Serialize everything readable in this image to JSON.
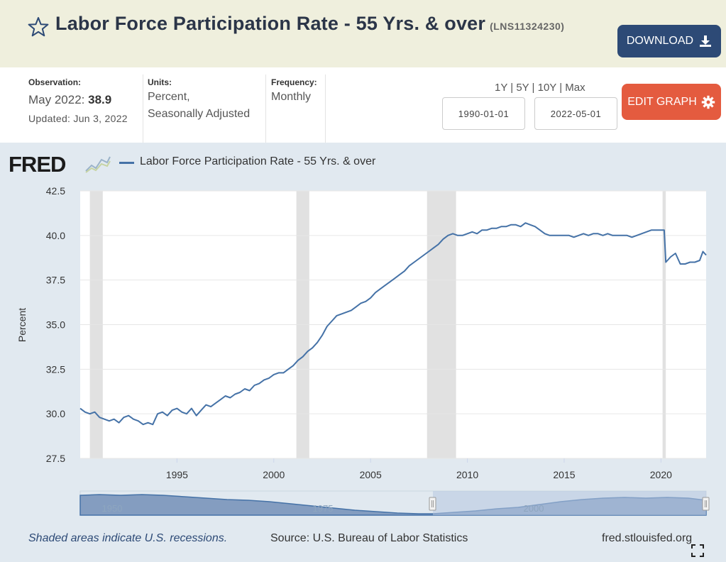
{
  "header": {
    "title": "Labor Force Participation Rate - 55 Yrs. & over",
    "series_id": "(LNS11324230)",
    "download_label": "DOWNLOAD",
    "star_icon": "star-outline-icon",
    "download_icon": "download-icon"
  },
  "info": {
    "observation_label": "Observation:",
    "observation_date": "May 2022:",
    "observation_value": "38.9",
    "updated": "Updated: Jun 3, 2022",
    "units_label": "Units:",
    "units_line1": "Percent,",
    "units_line2": "Seasonally Adjusted",
    "frequency_label": "Frequency:",
    "frequency_value": "Monthly",
    "range_links": [
      "1Y",
      "5Y",
      "10Y",
      "Max"
    ],
    "range_separator": " | ",
    "start_date": "1990-01-01",
    "end_date": "2022-05-01",
    "edit_label": "EDIT GRAPH",
    "edit_icon": "gear-icon"
  },
  "chart": {
    "logo_text": "FRED",
    "legend_label": "Labor Force Participation Rate - 55 Yrs. & over",
    "navigator_labels": [
      "1950",
      "1975",
      "2000"
    ],
    "footer_note": "Shaded areas indicate U.S. recessions.",
    "footer_source": "Source: U.S. Bureau of Labor Statistics",
    "footer_site": "fred.stlouisfed.org",
    "line_color": "#4572a7",
    "recession_color": "#e1e1e1"
  },
  "chart_data": {
    "type": "line",
    "ylabel": "Percent",
    "ylim": [
      27.5,
      42.5
    ],
    "yticks": [
      "27.5",
      "30.0",
      "32.5",
      "35.0",
      "37.5",
      "40.0",
      "42.5"
    ],
    "xlim": [
      "1990-01-01",
      "2022-05-01"
    ],
    "xticks": [
      "1995",
      "2000",
      "2005",
      "2010",
      "2015",
      "2020"
    ],
    "grid": true,
    "recessions": [
      [
        "1990-07-01",
        "1991-03-01"
      ],
      [
        "2001-03-01",
        "2001-11-01"
      ],
      [
        "2007-12-01",
        "2009-06-01"
      ],
      [
        "2020-02-01",
        "2020-04-01"
      ]
    ],
    "series": [
      {
        "name": "Labor Force Participation Rate - 55 Yrs. & over",
        "x": [
          "1990-01",
          "1990-04",
          "1990-07",
          "1990-10",
          "1991-01",
          "1991-04",
          "1991-07",
          "1991-10",
          "1992-01",
          "1992-04",
          "1992-07",
          "1992-10",
          "1993-01",
          "1993-04",
          "1993-07",
          "1993-10",
          "1994-01",
          "1994-04",
          "1994-07",
          "1994-10",
          "1995-01",
          "1995-04",
          "1995-07",
          "1995-10",
          "1996-01",
          "1996-04",
          "1996-07",
          "1996-10",
          "1997-01",
          "1997-04",
          "1997-07",
          "1997-10",
          "1998-01",
          "1998-04",
          "1998-07",
          "1998-10",
          "1999-01",
          "1999-04",
          "1999-07",
          "1999-10",
          "2000-01",
          "2000-04",
          "2000-07",
          "2000-10",
          "2001-01",
          "2001-04",
          "2001-07",
          "2001-10",
          "2002-01",
          "2002-04",
          "2002-07",
          "2002-10",
          "2003-01",
          "2003-04",
          "2003-07",
          "2003-10",
          "2004-01",
          "2004-04",
          "2004-07",
          "2004-10",
          "2005-01",
          "2005-04",
          "2005-07",
          "2005-10",
          "2006-01",
          "2006-04",
          "2006-07",
          "2006-10",
          "2007-01",
          "2007-04",
          "2007-07",
          "2007-10",
          "2008-01",
          "2008-04",
          "2008-07",
          "2008-10",
          "2009-01",
          "2009-04",
          "2009-07",
          "2009-10",
          "2010-01",
          "2010-04",
          "2010-07",
          "2010-10",
          "2011-01",
          "2011-04",
          "2011-07",
          "2011-10",
          "2012-01",
          "2012-04",
          "2012-07",
          "2012-10",
          "2013-01",
          "2013-04",
          "2013-07",
          "2013-10",
          "2014-01",
          "2014-04",
          "2014-07",
          "2014-10",
          "2015-01",
          "2015-04",
          "2015-07",
          "2015-10",
          "2016-01",
          "2016-04",
          "2016-07",
          "2016-10",
          "2017-01",
          "2017-04",
          "2017-07",
          "2017-10",
          "2018-01",
          "2018-04",
          "2018-07",
          "2018-10",
          "2019-01",
          "2019-04",
          "2019-07",
          "2019-10",
          "2020-01",
          "2020-03",
          "2020-04",
          "2020-07",
          "2020-10",
          "2021-01",
          "2021-04",
          "2021-07",
          "2021-10",
          "2022-01",
          "2022-03",
          "2022-05"
        ],
        "values": [
          30.3,
          30.1,
          30.0,
          30.1,
          29.8,
          29.7,
          29.6,
          29.7,
          29.5,
          29.8,
          29.9,
          29.7,
          29.6,
          29.4,
          29.5,
          29.4,
          30.0,
          30.1,
          29.9,
          30.2,
          30.3,
          30.1,
          30.0,
          30.3,
          29.9,
          30.2,
          30.5,
          30.4,
          30.6,
          30.8,
          31.0,
          30.9,
          31.1,
          31.2,
          31.4,
          31.3,
          31.6,
          31.7,
          31.9,
          32.0,
          32.2,
          32.3,
          32.3,
          32.5,
          32.7,
          33.0,
          33.2,
          33.5,
          33.7,
          34.0,
          34.4,
          34.9,
          35.2,
          35.5,
          35.6,
          35.7,
          35.8,
          36.0,
          36.2,
          36.3,
          36.5,
          36.8,
          37.0,
          37.2,
          37.4,
          37.6,
          37.8,
          38.0,
          38.3,
          38.5,
          38.7,
          38.9,
          39.1,
          39.3,
          39.5,
          39.8,
          40.0,
          40.1,
          40.0,
          40.0,
          40.1,
          40.2,
          40.1,
          40.3,
          40.3,
          40.4,
          40.4,
          40.5,
          40.5,
          40.6,
          40.6,
          40.5,
          40.7,
          40.6,
          40.5,
          40.3,
          40.1,
          40.0,
          40.0,
          40.0,
          40.0,
          40.0,
          39.9,
          40.0,
          40.1,
          40.0,
          40.1,
          40.1,
          40.0,
          40.1,
          40.0,
          40.0,
          40.0,
          40.0,
          39.9,
          40.0,
          40.1,
          40.2,
          40.3,
          40.3,
          40.3,
          40.3,
          38.5,
          38.8,
          39.0,
          38.4,
          38.4,
          38.5,
          38.5,
          38.6,
          39.1,
          38.9
        ]
      }
    ]
  }
}
